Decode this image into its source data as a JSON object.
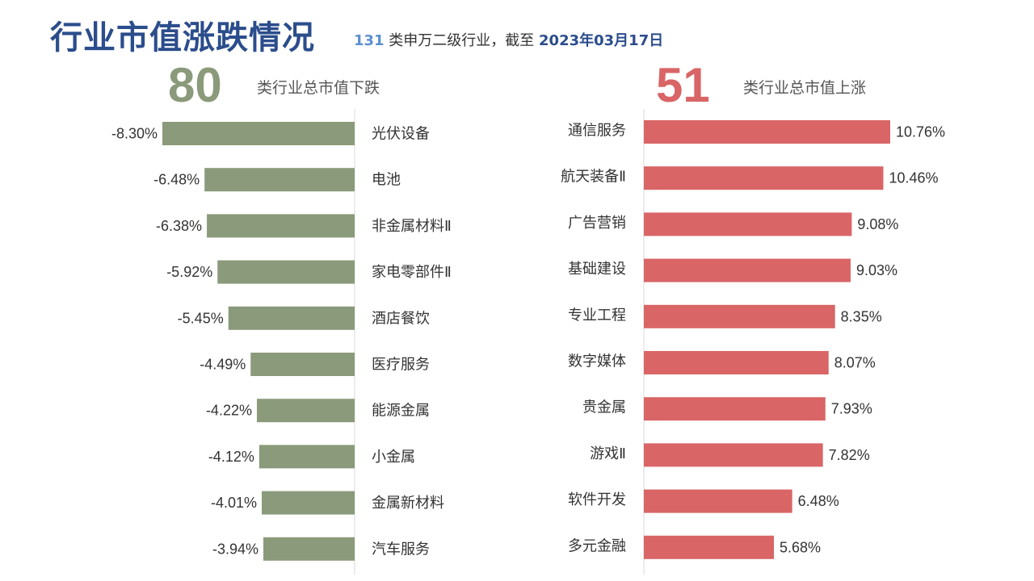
{
  "header": {
    "title": "行业市值涨跌情况",
    "subtitle_count": "131",
    "subtitle_text": " 类申万二级行业，截至 ",
    "subtitle_date": "2023年03月17日"
  },
  "down_summary": {
    "count": "80",
    "caption": "类行业总市值下跌"
  },
  "up_summary": {
    "count": "51",
    "caption": "类行业总市值上涨"
  },
  "colors": {
    "down": "#8a9a7a",
    "up": "#d96566",
    "title": "#2b4d8c",
    "axis": "#d9d9d9"
  },
  "chart_data": [
    {
      "type": "bar",
      "orientation": "horizontal",
      "categories": [
        "光伏设备",
        "电池",
        "非金属材料Ⅱ",
        "家电零部件Ⅱ",
        "酒店餐饮",
        "医疗服务",
        "能源金属",
        "小金属",
        "金属新材料",
        "汽车服务"
      ],
      "values": [
        -8.3,
        -6.48,
        -6.38,
        -5.92,
        -5.45,
        -4.49,
        -4.22,
        -4.12,
        -4.01,
        -3.94
      ],
      "value_labels": [
        "-8.30%",
        "-6.48%",
        "-6.38%",
        "-5.92%",
        "-5.45%",
        "-4.49%",
        "-4.22%",
        "-4.12%",
        "-4.01%",
        "-3.94%"
      ],
      "unit": "%"
    },
    {
      "type": "bar",
      "orientation": "horizontal",
      "categories": [
        "通信服务",
        "航天装备Ⅱ",
        "广告营销",
        "基础建设",
        "专业工程",
        "数字媒体",
        "贵金属",
        "游戏Ⅱ",
        "软件开发",
        "多元金融"
      ],
      "values": [
        10.76,
        10.46,
        9.08,
        9.03,
        8.35,
        8.07,
        7.93,
        7.82,
        6.48,
        5.68
      ],
      "value_labels": [
        "10.76%",
        "10.46%",
        "9.08%",
        "9.03%",
        "8.35%",
        "8.07%",
        "7.93%",
        "7.82%",
        "6.48%",
        "5.68%"
      ],
      "unit": "%"
    }
  ]
}
